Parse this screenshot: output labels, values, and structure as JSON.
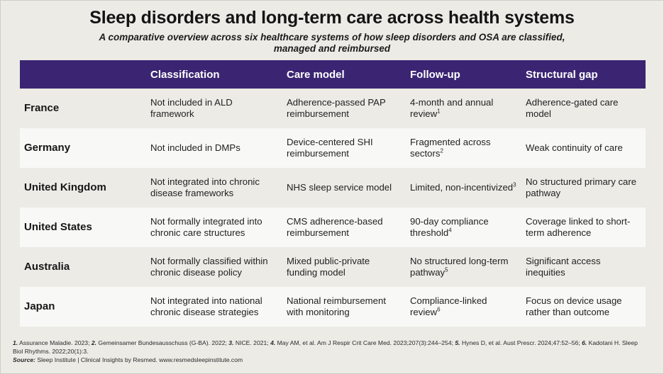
{
  "title": "Sleep disorders and long-term care across health systems",
  "subtitle": "A comparative overview across six healthcare systems of how sleep disorders and OSA are classified, managed and reimbursed",
  "table": {
    "headers": [
      "",
      "Classification",
      "Care model",
      "Follow-up",
      "Structural gap"
    ],
    "rows": [
      {
        "country": "France",
        "classification": "Not included in ALD framework",
        "care_model": "Adherence-passed PAP reimbursement",
        "follow_up": "4-month and annual review",
        "follow_up_ref": "1",
        "structural_gap": "Adherence-gated care model"
      },
      {
        "country": "Germany",
        "classification": "Not included in DMPs",
        "care_model": "Device-centered SHI reimbursement",
        "follow_up": "Fragmented across sectors",
        "follow_up_ref": "2",
        "structural_gap": "Weak continuity of care"
      },
      {
        "country": "United Kingdom",
        "classification": "Not integrated into chronic disease frameworks",
        "care_model": "NHS sleep service model",
        "follow_up": "Limited, non-incentivized",
        "follow_up_ref": "3",
        "structural_gap": "No structured primary care pathway"
      },
      {
        "country": "United States",
        "classification": "Not formally integrated into chronic care structures",
        "care_model": "CMS adherence-based reimbursement",
        "follow_up": "90-day compliance threshold",
        "follow_up_ref": "4",
        "structural_gap": "Coverage linked to short-term adherence"
      },
      {
        "country": "Australia",
        "classification": "Not formally classified within chronic disease policy",
        "care_model": "Mixed public-private funding model",
        "follow_up": "No structured long-term pathway",
        "follow_up_ref": "5",
        "structural_gap": "Significant access inequities"
      },
      {
        "country": "Japan",
        "classification": "Not integrated into national chronic disease strategies",
        "care_model": "National reimbursement with monitoring",
        "follow_up": "Compliance-linked review",
        "follow_up_ref": "6",
        "structural_gap": "Focus on device usage rather than outcome"
      }
    ]
  },
  "footer": {
    "references": [
      {
        "num": "1.",
        "text": " Assurance Maladie. 2023; "
      },
      {
        "num": "2.",
        "text": " Gemeinsamer Bundesausschuss (G-BA). 2022; "
      },
      {
        "num": "3.",
        "text": " NICE. 2021; "
      },
      {
        "num": "4.",
        "text": " May AM, et al. Am J Respir Crit Care Med. 2023;207(3):244–254; "
      },
      {
        "num": "5.",
        "text": " Hynes D, et al. Aust Prescr. 2024;47:52–56; "
      },
      {
        "num": "6.",
        "text": " Kadotani H. Sleep Biol Rhythms. 2022;20(1):3."
      }
    ],
    "source_label": "Source:",
    "source_text": " Sleep Institute | Clinical Insights by Resmed. www.resmedsleepinstitute.com"
  },
  "colors": {
    "header_bg": "#3b2573",
    "page_bg": "#ecebe6",
    "alt_row_bg": "#f8f8f6"
  }
}
